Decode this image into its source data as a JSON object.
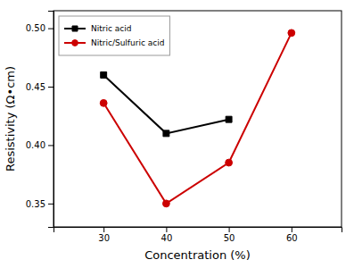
{
  "chart_data": {
    "type": "line",
    "x": [
      30,
      40,
      50,
      60
    ],
    "series": [
      {
        "name": "Nitric acid",
        "color": "#000000",
        "marker": "square",
        "values": [
          0.46,
          0.41,
          0.422,
          null
        ]
      },
      {
        "name": "Nitric/Sulfuric acid",
        "color": "#cc0000",
        "marker": "circle",
        "values": [
          0.436,
          0.35,
          0.385,
          0.496
        ]
      }
    ],
    "x_label": "Concentration (%)",
    "y_label": "Resistivity (Ω•cm)",
    "xlim": [
      22,
      68
    ],
    "ylim": [
      0.33,
      0.515
    ],
    "xticks": [
      30,
      40,
      50,
      60
    ],
    "yticks": [
      0.35,
      {
        "value": 0.4,
        "label": "0.40"
      },
      0.45,
      {
        "value": 0.5,
        "label": "0.50"
      }
    ],
    "grid": false,
    "legend": "upper-left"
  }
}
